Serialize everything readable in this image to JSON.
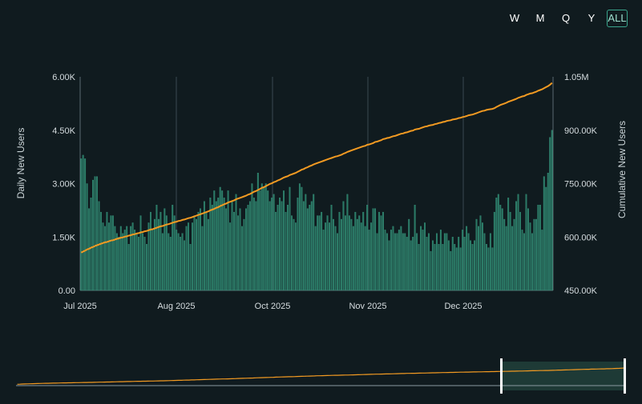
{
  "range_selector": {
    "buttons": [
      {
        "label": "W",
        "active": false
      },
      {
        "label": "M",
        "active": false
      },
      {
        "label": "Q",
        "active": false
      },
      {
        "label": "Y",
        "active": false
      },
      {
        "label": "ALL",
        "active": true
      }
    ]
  },
  "colors": {
    "background": "#101b1f",
    "bar": "#2a7a66",
    "bar_edge": "#3a9a80",
    "line": "#f29a22",
    "grid": "#3a4a50",
    "nav_fill": "#1e3a36"
  },
  "chart_data": {
    "type": "bar+line",
    "title": "",
    "ylabel_left": "Daily New Users",
    "ylabel_right": "Cumulative New Users",
    "x_tick_labels": [
      "Jul 2025",
      "Aug 2025",
      "Oct 2025",
      "Nov 2025",
      "Dec 2025"
    ],
    "y_left_ticks": [
      "0.00",
      "1.50K",
      "3.00K",
      "4.50K",
      "6.00K"
    ],
    "y_right_ticks": [
      "450.00K",
      "600.00K",
      "750.00K",
      "900.00K",
      "1.05M"
    ],
    "ylim_left": [
      0,
      6000
    ],
    "ylim_right": [
      450000,
      1050000
    ],
    "x_start": "2025-07-01",
    "x_end": "2025-12-31",
    "series": [
      {
        "name": "Daily New Users",
        "type": "bar",
        "values": [
          3700,
          3800,
          3700,
          3000,
          2300,
          2600,
          3100,
          3200,
          3200,
          2500,
          2200,
          1900,
          1800,
          2200,
          1900,
          2100,
          2100,
          1800,
          1600,
          1500,
          1800,
          1600,
          1700,
          1800,
          1300,
          1800,
          1900,
          1700,
          1600,
          1500,
          2100,
          1600,
          1500,
          1300,
          1900,
          2200,
          1700,
          2000,
          2400,
          2000,
          2200,
          1600,
          2300,
          2100,
          1600,
          1500,
          2400,
          2100,
          1700,
          1600,
          1500,
          1600,
          1400,
          1800,
          1900,
          1300,
          1900,
          2100,
          2000,
          2200,
          2300,
          1800,
          2500,
          2200,
          2000,
          2600,
          2400,
          2800,
          2500,
          2600,
          2900,
          2800,
          2600,
          2300,
          2800,
          1900,
          2500,
          2200,
          2700,
          2100,
          2300,
          1800,
          2000,
          2300,
          2400,
          2500,
          3000,
          2600,
          2500,
          3300,
          2800,
          3000,
          2900,
          3000,
          2800,
          2500,
          2600,
          2700,
          2200,
          2400,
          2600,
          2500,
          2800,
          2200,
          2400,
          2900,
          2100,
          2000,
          1900,
          2600,
          3000,
          2900,
          2500,
          2700,
          2300,
          2400,
          2500,
          2700,
          1800,
          2100,
          2100,
          2200,
          1700,
          1900,
          2100,
          1900,
          2400,
          2000,
          1800,
          1600,
          2200,
          2000,
          2500,
          2100,
          2700,
          2100,
          2000,
          1800,
          2200,
          2000,
          2100,
          1900,
          2200,
          1800,
          2400,
          1700,
          1900,
          2300,
          2300,
          1600,
          2200,
          2100,
          2200,
          1700,
          1600,
          1400,
          1700,
          1800,
          1600,
          1600,
          1700,
          1800,
          1600,
          1600,
          1500,
          2000,
          1400,
          1500,
          2400,
          1600,
          1300,
          1800,
          1700,
          1900,
          1500,
          1600,
          1100,
          1400,
          1300,
          1600,
          1300,
          1700,
          1300,
          1600,
          1600,
          1400,
          1100,
          1500,
          1300,
          1200,
          1500,
          1200,
          1700,
          1500,
          1800,
          1600,
          1400,
          1300,
          1400,
          2000,
          1800,
          2100,
          1900,
          1600,
          1300,
          1200,
          1600,
          1200,
          2200,
          2600,
          2700,
          2400,
          2300,
          2000,
          1800,
          2600,
          2200,
          1800,
          2000,
          2500,
          2700,
          2200,
          1700,
          1600,
          2700,
          2300,
          1900,
          1600,
          2000,
          2000,
          2400,
          2400,
          1700,
          3200,
          2900,
          3300,
          4300,
          4500
        ]
      },
      {
        "name": "Cumulative New Users",
        "type": "line",
        "values": [
          556000,
          559000,
          562000,
          565000,
          567000,
          570000,
          572000,
          575000,
          577000,
          579000,
          581000,
          583000,
          585000,
          586000,
          588000,
          590000,
          591000,
          593000,
          595000,
          596000,
          598000,
          599000,
          601000,
          602000,
          604000,
          605000,
          607000,
          608000,
          610000,
          611000,
          613000,
          614000,
          616000,
          617000,
          619000,
          621000,
          622000,
          624000,
          626000,
          628000,
          630000,
          631000,
          633000,
          635000,
          636000,
          638000,
          640000,
          642000,
          643000,
          645000,
          646000,
          648000,
          649000,
          651000,
          653000,
          654000,
          656000,
          658000,
          660000,
          662000,
          664000,
          666000,
          668000,
          670000,
          672000,
          675000,
          677000,
          679000,
          682000,
          684000,
          687000,
          689000,
          692000,
          694000,
          697000,
          699000,
          701000,
          703000,
          706000,
          708000,
          710000,
          712000,
          714000,
          716000,
          719000,
          721000,
          724000,
          727000,
          729000,
          732000,
          735000,
          738000,
          740000,
          743000,
          746000,
          749000,
          751000,
          754000,
          756000,
          759000,
          761000,
          764000,
          767000,
          769000,
          771000,
          774000,
          776000,
          778000,
          780000,
          783000,
          786000,
          789000,
          791000,
          794000,
          796000,
          799000,
          801000,
          804000,
          806000,
          808000,
          810000,
          812000,
          814000,
          816000,
          818000,
          820000,
          822000,
          824000,
          826000,
          827000,
          829000,
          831000,
          834000,
          836000,
          839000,
          841000,
          843000,
          845000,
          847000,
          849000,
          851000,
          853000,
          855000,
          856000,
          859000,
          860000,
          862000,
          864000,
          867000,
          868000,
          870000,
          872000,
          875000,
          876000,
          878000,
          879000,
          881000,
          883000,
          884000,
          886000,
          888000,
          890000,
          891000,
          893000,
          894000,
          896000,
          898000,
          899000,
          902000,
          903000,
          904000,
          906000,
          908000,
          910000,
          911000,
          913000,
          914000,
          915000,
          917000,
          918000,
          920000,
          921000,
          923000,
          924000,
          926000,
          927000,
          928000,
          930000,
          931000,
          932000,
          934000,
          935000,
          937000,
          938000,
          940000,
          942000,
          943000,
          944000,
          946000,
          948000,
          950000,
          952000,
          954000,
          955000,
          957000,
          958000,
          959000,
          960000,
          962000,
          965000,
          968000,
          971000,
          973000,
          975000,
          977000,
          980000,
          982000,
          984000,
          986000,
          988000,
          991000,
          993000,
          995000,
          996000,
          999000,
          1001000,
          1003000,
          1004000,
          1006000,
          1008000,
          1011000,
          1013000,
          1015000,
          1018000,
          1021000,
          1024000,
          1028000,
          1033000
        ]
      }
    ],
    "legend": "none",
    "grid": "vertical"
  }
}
